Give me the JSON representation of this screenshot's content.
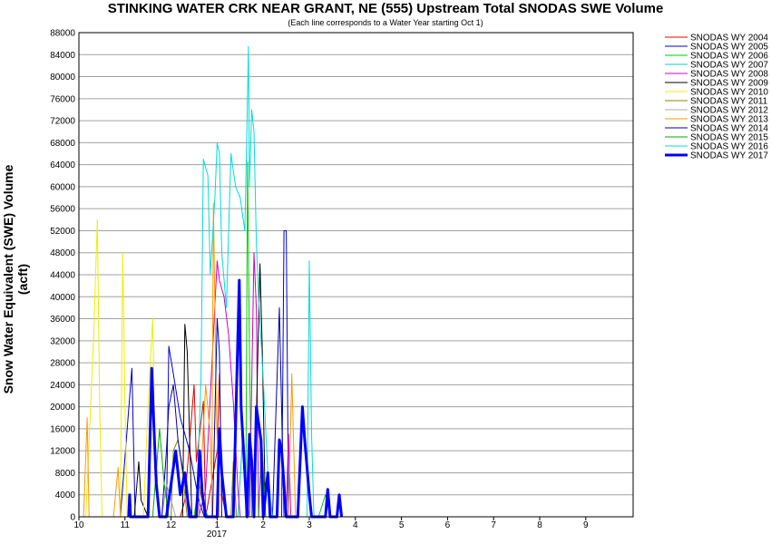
{
  "chart_data": {
    "type": "line",
    "title": "STINKING WATER CRK NEAR GRANT, NE (555) Upstream Total SNODAS SWE Volume",
    "subtitle": "(Each line corresponds to a Water Year starting Oct 1)",
    "ylabel": "Snow Water Equivalent (SWE) Volume (acft)",
    "xlabel": "",
    "ylim": [
      0,
      88000
    ],
    "y_ticks": [
      "0",
      "4000",
      "8000",
      "12000",
      "16000",
      "20000",
      "24000",
      "28000",
      "32000",
      "36000",
      "40000",
      "44000",
      "48000",
      "52000",
      "56000",
      "60000",
      "64000",
      "68000",
      "72000",
      "76000",
      "80000",
      "84000",
      "88000"
    ],
    "x_ticks": [
      "10",
      "11",
      "12",
      "1",
      "2",
      "3",
      "4",
      "5",
      "6",
      "7",
      "8",
      "9"
    ],
    "x_year_label": "2017",
    "grid": true,
    "legend_position": "right",
    "series": [
      {
        "name": "SNODAS WY 2004",
        "color": "#e00000",
        "points": [
          [
            2.2,
            0
          ],
          [
            2.3,
            3000
          ],
          [
            2.5,
            24000
          ],
          [
            2.55,
            10000
          ],
          [
            2.7,
            21000
          ],
          [
            2.75,
            0
          ],
          [
            3.0,
            12000
          ],
          [
            3.05,
            26000
          ],
          [
            3.1,
            4000
          ],
          [
            3.2,
            0
          ]
        ]
      },
      {
        "name": "SNODAS WY 2005",
        "color": "#0000cc",
        "points": [
          [
            0.9,
            0
          ],
          [
            1.15,
            27000
          ],
          [
            1.22,
            0
          ],
          [
            1.9,
            0
          ],
          [
            1.95,
            31000
          ],
          [
            2.05,
            26000
          ],
          [
            2.2,
            18000
          ],
          [
            2.4,
            12000
          ],
          [
            2.6,
            3000
          ],
          [
            2.72,
            0
          ],
          [
            4.4,
            0
          ],
          [
            4.45,
            52000
          ],
          [
            4.5,
            52000
          ],
          [
            4.55,
            0
          ]
        ]
      },
      {
        "name": "SNODAS WY 2006",
        "color": "#00cc00",
        "points": [
          [
            2.5,
            0
          ],
          [
            2.6,
            6000
          ],
          [
            2.68,
            3000
          ],
          [
            2.8,
            0
          ],
          [
            3.62,
            0
          ],
          [
            3.66,
            64500
          ],
          [
            3.7,
            30000
          ],
          [
            3.75,
            0
          ],
          [
            5.2,
            0
          ],
          [
            5.35,
            4000
          ],
          [
            5.45,
            0
          ]
        ]
      },
      {
        "name": "SNODAS WY 2007",
        "color": "#00cccc",
        "points": [
          [
            3.45,
            0
          ],
          [
            3.55,
            14000
          ],
          [
            3.62,
            4000
          ],
          [
            3.7,
            0
          ]
        ]
      },
      {
        "name": "SNODAS WY 2008",
        "color": "#cc00cc",
        "points": [
          [
            2.6,
            0
          ],
          [
            2.75,
            5000
          ],
          [
            2.9,
            30000
          ],
          [
            3.0,
            46500
          ],
          [
            3.05,
            43000
          ],
          [
            3.15,
            40000
          ],
          [
            3.25,
            33000
          ],
          [
            3.35,
            21000
          ],
          [
            3.45,
            5000
          ],
          [
            3.5,
            0
          ],
          [
            3.7,
            0
          ],
          [
            3.8,
            48000
          ],
          [
            3.85,
            38000
          ],
          [
            3.9,
            0
          ],
          [
            4.5,
            0
          ],
          [
            4.55,
            15000
          ],
          [
            4.6,
            0
          ]
        ]
      },
      {
        "name": "SNODAS WY 2009",
        "color": "#000000",
        "points": [
          [
            1.2,
            0
          ],
          [
            1.3,
            10000
          ],
          [
            1.35,
            3000
          ],
          [
            1.5,
            0
          ],
          [
            2.25,
            0
          ],
          [
            2.3,
            35000
          ],
          [
            2.35,
            30000
          ],
          [
            2.45,
            0
          ],
          [
            3.8,
            0
          ],
          [
            3.93,
            46000
          ],
          [
            3.98,
            30000
          ],
          [
            4.05,
            0
          ]
        ]
      },
      {
        "name": "SNODAS WY 2010",
        "color": "#eeee00",
        "points": [
          [
            0.15,
            0
          ],
          [
            0.32,
            33000
          ],
          [
            0.4,
            54000
          ],
          [
            0.45,
            20000
          ],
          [
            0.5,
            0
          ],
          [
            0.9,
            0
          ],
          [
            0.95,
            48000
          ],
          [
            1.0,
            20000
          ],
          [
            1.05,
            0
          ],
          [
            1.4,
            0
          ],
          [
            1.5,
            20000
          ],
          [
            1.6,
            36000
          ],
          [
            1.65,
            15000
          ],
          [
            1.75,
            0
          ]
        ]
      },
      {
        "name": "SNODAS WY 2011",
        "color": "#888800",
        "points": [
          [
            2.0,
            0
          ],
          [
            2.05,
            12000
          ],
          [
            2.15,
            14000
          ],
          [
            2.25,
            8000
          ],
          [
            2.35,
            0
          ],
          [
            3.3,
            0
          ],
          [
            3.35,
            10000
          ],
          [
            3.42,
            0
          ]
        ]
      },
      {
        "name": "SNODAS WY 2012",
        "color": "#aaaaaa",
        "points": [
          [
            1.8,
            0
          ],
          [
            1.9,
            6000
          ],
          [
            2.0,
            3000
          ],
          [
            2.1,
            0
          ]
        ]
      },
      {
        "name": "SNODAS WY 2013",
        "color": "#ff9900",
        "points": [
          [
            0.1,
            0
          ],
          [
            0.18,
            18000
          ],
          [
            0.22,
            0
          ],
          [
            0.75,
            0
          ],
          [
            0.85,
            9000
          ],
          [
            0.9,
            0
          ],
          [
            2.6,
            0
          ],
          [
            2.75,
            24000
          ],
          [
            2.85,
            15000
          ],
          [
            2.9,
            0
          ],
          [
            2.88,
            0
          ],
          [
            2.92,
            57000
          ],
          [
            2.98,
            20000
          ],
          [
            3.05,
            0
          ],
          [
            4.55,
            0
          ],
          [
            4.62,
            26000
          ],
          [
            4.7,
            0
          ]
        ]
      },
      {
        "name": "SNODAS WY 2014",
        "color": "#0000aa",
        "points": [
          [
            1.8,
            0
          ],
          [
            1.9,
            12000
          ],
          [
            1.95,
            20000
          ],
          [
            2.05,
            24000
          ],
          [
            2.15,
            14000
          ],
          [
            2.3,
            6000
          ],
          [
            2.45,
            0
          ],
          [
            2.9,
            0
          ],
          [
            3.0,
            36000
          ],
          [
            3.05,
            30000
          ],
          [
            3.1,
            0
          ],
          [
            4.2,
            0
          ],
          [
            4.35,
            38000
          ],
          [
            4.45,
            0
          ]
        ]
      },
      {
        "name": "SNODAS WY 2015",
        "color": "#00aa00",
        "points": [
          [
            1.6,
            0
          ],
          [
            1.75,
            16000
          ],
          [
            1.85,
            6000
          ],
          [
            1.95,
            0
          ],
          [
            3.9,
            0
          ],
          [
            3.97,
            14000
          ],
          [
            4.05,
            0
          ]
        ]
      },
      {
        "name": "SNODAS WY 2016",
        "color": "#00dddd",
        "points": [
          [
            2.55,
            0
          ],
          [
            2.65,
            25000
          ],
          [
            2.7,
            65000
          ],
          [
            2.8,
            62000
          ],
          [
            2.85,
            44000
          ],
          [
            2.95,
            58000
          ],
          [
            3.0,
            68000
          ],
          [
            3.05,
            66000
          ],
          [
            3.1,
            48000
          ],
          [
            3.2,
            38000
          ],
          [
            3.3,
            66000
          ],
          [
            3.4,
            60000
          ],
          [
            3.5,
            58000
          ],
          [
            3.55,
            55000
          ],
          [
            3.6,
            52000
          ],
          [
            3.65,
            72000
          ],
          [
            3.68,
            85500
          ],
          [
            3.7,
            60000
          ],
          [
            3.75,
            74000
          ],
          [
            3.8,
            70000
          ],
          [
            3.85,
            50000
          ],
          [
            3.9,
            40000
          ],
          [
            4.0,
            25000
          ],
          [
            4.1,
            8000
          ],
          [
            4.2,
            0
          ],
          [
            4.95,
            0
          ],
          [
            5.0,
            46500
          ],
          [
            5.05,
            15000
          ],
          [
            5.1,
            0
          ]
        ]
      },
      {
        "name": "SNODAS WY 2017",
        "color": "#0000ff",
        "width": 3,
        "points": [
          [
            1.08,
            0
          ],
          [
            1.1,
            4000
          ],
          [
            1.12,
            0
          ],
          [
            1.5,
            0
          ],
          [
            1.58,
            27000
          ],
          [
            1.62,
            18000
          ],
          [
            1.68,
            6000
          ],
          [
            1.75,
            0
          ],
          [
            1.9,
            0
          ],
          [
            2.1,
            12000
          ],
          [
            2.2,
            4000
          ],
          [
            2.3,
            8000
          ],
          [
            2.4,
            0
          ],
          [
            2.55,
            0
          ],
          [
            2.62,
            12000
          ],
          [
            2.68,
            4000
          ],
          [
            2.75,
            0
          ],
          [
            3.0,
            0
          ],
          [
            3.05,
            16000
          ],
          [
            3.1,
            8000
          ],
          [
            3.2,
            0
          ],
          [
            3.35,
            0
          ],
          [
            3.48,
            43000
          ],
          [
            3.52,
            20000
          ],
          [
            3.6,
            8000
          ],
          [
            3.65,
            0
          ],
          [
            3.7,
            15000
          ],
          [
            3.75,
            10000
          ],
          [
            3.8,
            0
          ],
          [
            3.85,
            20000
          ],
          [
            3.95,
            14000
          ],
          [
            4.0,
            0
          ],
          [
            4.1,
            8000
          ],
          [
            4.15,
            0
          ],
          [
            4.3,
            0
          ],
          [
            4.35,
            14000
          ],
          [
            4.4,
            12000
          ],
          [
            4.5,
            0
          ],
          [
            4.75,
            0
          ],
          [
            4.85,
            20000
          ],
          [
            4.9,
            14000
          ],
          [
            5.0,
            4000
          ],
          [
            5.05,
            0
          ],
          [
            5.35,
            0
          ],
          [
            5.4,
            5000
          ],
          [
            5.45,
            0
          ],
          [
            5.6,
            0
          ],
          [
            5.65,
            4000
          ],
          [
            5.7,
            0
          ]
        ]
      }
    ]
  }
}
